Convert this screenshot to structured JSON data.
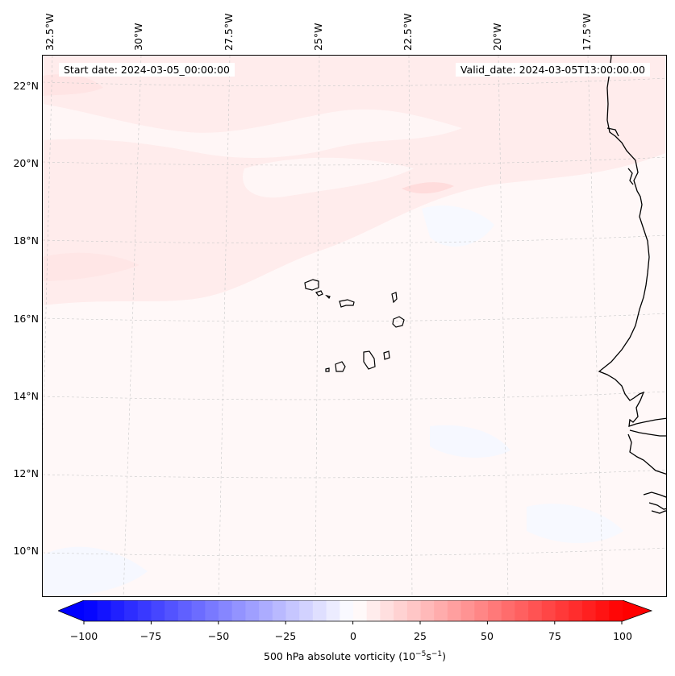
{
  "map": {
    "start_date_text": "Start date: 2024-03-05_00:00:00",
    "valid_date_text": "Valid_date: 2024-03-05T13:00:00.00",
    "longitude_labels": [
      "32.5°W",
      "30°W",
      "27.5°W",
      "25°W",
      "22.5°W",
      "20°W",
      "17.5°W"
    ],
    "latitude_labels": [
      "22°N",
      "20°N",
      "18°N",
      "16°N",
      "14°N",
      "12°N",
      "10°N"
    ],
    "field": "500 hPa absolute vorticity",
    "colormap": "bwr",
    "colors": {
      "negative_end": "#0000ff",
      "zero": "#ffffff",
      "positive_end": "#ff0000",
      "gridline": "#c8c8c8",
      "coastline": "#000000"
    }
  },
  "colorbar": {
    "ticks": [
      "−100",
      "−75",
      "−50",
      "−25",
      "0",
      "25",
      "50",
      "75",
      "100"
    ],
    "label_main": "500 hPa absolute vorticity (10",
    "label_exp1": "−5",
    "label_mid": "s",
    "label_exp2": "−1",
    "label_end": ")",
    "min": -100,
    "max": 100,
    "levels": 40
  }
}
